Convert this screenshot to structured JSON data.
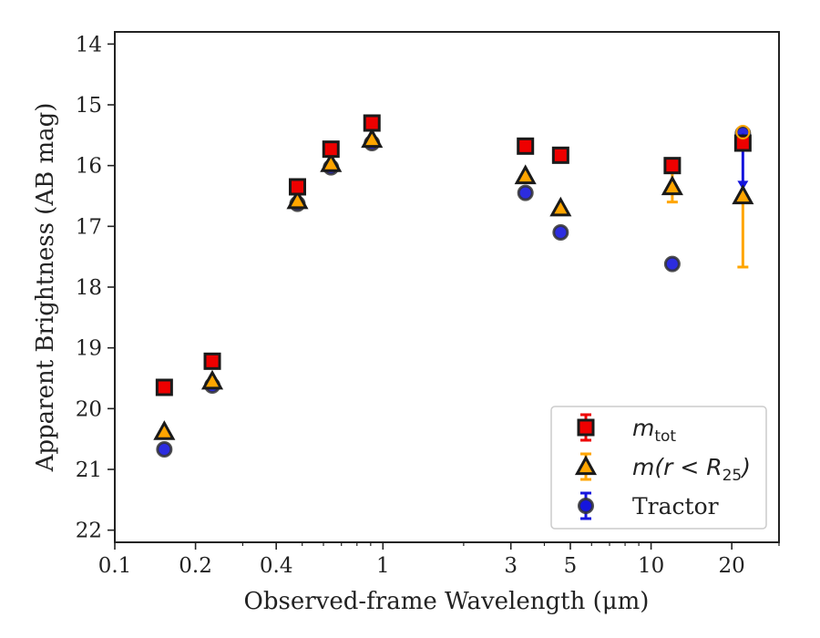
{
  "chart_data": {
    "type": "scatter",
    "xlabel": "Observed-frame Wavelength (μm)",
    "ylabel": "Apparent Brightness (AB mag)",
    "xscale": "log",
    "xlim": [
      0.1,
      30
    ],
    "ylim": [
      22.2,
      13.8
    ],
    "y_inverted": true,
    "xticks": [
      0.1,
      0.2,
      0.4,
      1,
      3,
      5,
      10,
      20
    ],
    "xtick_labels": [
      "0.1",
      "0.2",
      "0.4",
      "1",
      "3",
      "5",
      "10",
      "20"
    ],
    "yticks": [
      14,
      15,
      16,
      17,
      18,
      19,
      20,
      21,
      22
    ],
    "ytick_labels": [
      "14",
      "15",
      "16",
      "17",
      "18",
      "19",
      "20",
      "21",
      "22"
    ],
    "legend_position": "lower-right",
    "grid": false,
    "series": [
      {
        "name": "m_tot",
        "marker": "square",
        "color": "#ee0000",
        "points": [
          {
            "x": 0.153,
            "y": 19.65
          },
          {
            "x": 0.231,
            "y": 19.22
          },
          {
            "x": 0.48,
            "y": 16.35
          },
          {
            "x": 0.64,
            "y": 15.73
          },
          {
            "x": 0.91,
            "y": 15.3
          },
          {
            "x": 3.4,
            "y": 15.68
          },
          {
            "x": 4.6,
            "y": 15.83
          },
          {
            "x": 12.0,
            "y": 16.0
          },
          {
            "x": 22.0,
            "y": 15.63
          }
        ]
      },
      {
        "name": "m(r < R25)",
        "marker": "triangle",
        "color": "#ffa500",
        "points": [
          {
            "x": 0.153,
            "y": 20.38
          },
          {
            "x": 0.231,
            "y": 19.55
          },
          {
            "x": 0.48,
            "y": 16.58
          },
          {
            "x": 0.64,
            "y": 15.97
          },
          {
            "x": 0.91,
            "y": 15.57
          },
          {
            "x": 3.4,
            "y": 16.17
          },
          {
            "x": 4.6,
            "y": 16.7
          },
          {
            "x": 12.0,
            "y": 16.35,
            "err": 0.25
          },
          {
            "x": 22.0,
            "y": 16.5,
            "err_low": 1.17
          }
        ]
      },
      {
        "name": "Tractor",
        "marker": "circle",
        "color": "#1515dd",
        "points": [
          {
            "x": 0.153,
            "y": 20.67
          },
          {
            "x": 0.231,
            "y": 19.62
          },
          {
            "x": 0.48,
            "y": 16.63
          },
          {
            "x": 0.64,
            "y": 16.03
          },
          {
            "x": 0.91,
            "y": 15.63
          },
          {
            "x": 3.4,
            "y": 16.45
          },
          {
            "x": 4.6,
            "y": 17.1
          },
          {
            "x": 12.0,
            "y": 17.62
          },
          {
            "x": 22.0,
            "y": 15.47,
            "err_low": 0.9
          }
        ]
      }
    ],
    "legend": [
      {
        "main": "m",
        "sub": "tot",
        "suffix": "",
        "series": 0
      },
      {
        "main": "m(r < R",
        "sub": "25",
        "suffix": ")",
        "series": 1
      },
      {
        "main": "Tractor",
        "sub": "",
        "suffix": "",
        "series": 2
      }
    ]
  }
}
